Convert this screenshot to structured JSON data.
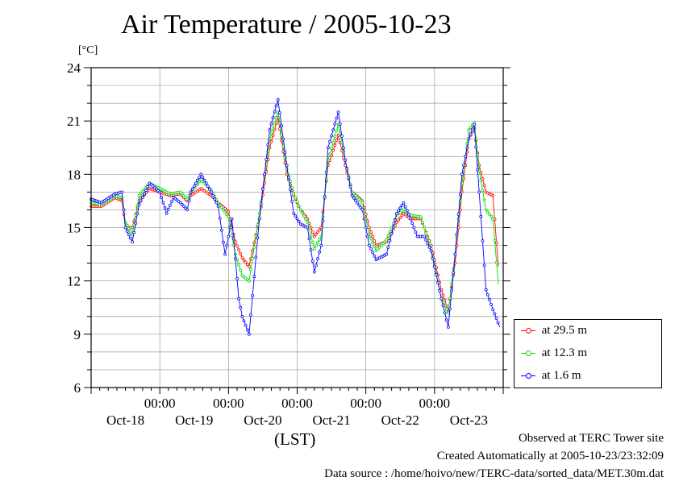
{
  "page": {
    "title": "Air Temperature / 2005-10-23",
    "unit_label": "[°C]",
    "time_zone_label": "(LST)",
    "footer": {
      "site": "Observed at TERC Tower site",
      "created": "Created Automatically at 2005-10-23/23:32:09",
      "source": "Data source : /home/hoivo/new/TERC-data/sorted_data/MET.30m.dat"
    }
  },
  "chart_data": {
    "type": "line",
    "title": "Air Temperature / 2005-10-23",
    "ylabel": "[°C]",
    "xlabel": "(LST)",
    "ylim": [
      6,
      24
    ],
    "y_ticks": [
      6,
      9,
      12,
      15,
      18,
      21,
      24
    ],
    "xlim_days": [
      0,
      6
    ],
    "x_time_ticks": [
      {
        "day": 1,
        "label": "00:00"
      },
      {
        "day": 2,
        "label": "00:00"
      },
      {
        "day": 3,
        "label": "00:00"
      },
      {
        "day": 4,
        "label": "00:00"
      },
      {
        "day": 5,
        "label": "00:00"
      }
    ],
    "x_date_labels": [
      {
        "day": 0.5,
        "label": "Oct-18"
      },
      {
        "day": 1.5,
        "label": "Oct-19"
      },
      {
        "day": 2.5,
        "label": "Oct-20"
      },
      {
        "day": 3.5,
        "label": "Oct-21"
      },
      {
        "day": 4.5,
        "label": "Oct-22"
      },
      {
        "day": 5.5,
        "label": "Oct-23"
      }
    ],
    "grid": true,
    "legend_position": "right-bottom",
    "series": [
      {
        "name": "at 29.5 m",
        "color": "#ff0000",
        "points": [
          [
            0.0,
            16.2
          ],
          [
            0.15,
            16.2
          ],
          [
            0.35,
            16.7
          ],
          [
            0.45,
            16.5
          ],
          [
            0.5,
            15.0
          ],
          [
            0.6,
            15.0
          ],
          [
            0.7,
            16.5
          ],
          [
            0.85,
            17.2
          ],
          [
            1.0,
            17.0
          ],
          [
            1.15,
            16.8
          ],
          [
            1.3,
            16.9
          ],
          [
            1.4,
            16.5
          ],
          [
            1.45,
            16.8
          ],
          [
            1.6,
            17.2
          ],
          [
            1.75,
            16.8
          ],
          [
            1.85,
            16.4
          ],
          [
            2.0,
            15.9
          ],
          [
            2.1,
            14.2
          ],
          [
            2.2,
            13.3
          ],
          [
            2.3,
            12.8
          ],
          [
            2.45,
            15.5
          ],
          [
            2.6,
            19.5
          ],
          [
            2.72,
            21.2
          ],
          [
            2.85,
            18.0
          ],
          [
            2.95,
            16.8
          ],
          [
            3.05,
            16.0
          ],
          [
            3.15,
            15.5
          ],
          [
            3.25,
            14.5
          ],
          [
            3.35,
            15.0
          ],
          [
            3.45,
            18.5
          ],
          [
            3.6,
            20.2
          ],
          [
            3.7,
            18.5
          ],
          [
            3.8,
            17.0
          ],
          [
            3.95,
            16.5
          ],
          [
            4.05,
            15.0
          ],
          [
            4.15,
            14.0
          ],
          [
            4.3,
            14.2
          ],
          [
            4.45,
            15.3
          ],
          [
            4.55,
            15.8
          ],
          [
            4.65,
            15.5
          ],
          [
            4.8,
            15.5
          ],
          [
            4.95,
            14.0
          ],
          [
            5.1,
            11.5
          ],
          [
            5.2,
            10.3
          ],
          [
            5.3,
            13.0
          ],
          [
            5.4,
            17.0
          ],
          [
            5.5,
            20.0
          ],
          [
            5.58,
            20.6
          ],
          [
            5.65,
            18.5
          ],
          [
            5.75,
            17.0
          ],
          [
            5.85,
            16.8
          ],
          [
            5.93,
            12.8
          ]
        ]
      },
      {
        "name": "at 12.3 m",
        "color": "#00dd00",
        "points": [
          [
            0.0,
            16.4
          ],
          [
            0.15,
            16.3
          ],
          [
            0.35,
            16.8
          ],
          [
            0.45,
            16.7
          ],
          [
            0.5,
            15.3
          ],
          [
            0.6,
            14.6
          ],
          [
            0.7,
            16.8
          ],
          [
            0.85,
            17.5
          ],
          [
            1.0,
            17.2
          ],
          [
            1.15,
            16.9
          ],
          [
            1.3,
            17.0
          ],
          [
            1.4,
            16.6
          ],
          [
            1.45,
            17.0
          ],
          [
            1.6,
            17.7
          ],
          [
            1.75,
            17.1
          ],
          [
            1.85,
            16.4
          ],
          [
            2.0,
            15.6
          ],
          [
            2.1,
            13.5
          ],
          [
            2.2,
            12.3
          ],
          [
            2.3,
            12.0
          ],
          [
            2.45,
            15.8
          ],
          [
            2.6,
            20.0
          ],
          [
            2.72,
            21.5
          ],
          [
            2.85,
            18.3
          ],
          [
            2.95,
            16.9
          ],
          [
            3.05,
            16.0
          ],
          [
            3.15,
            15.3
          ],
          [
            3.25,
            13.8
          ],
          [
            3.35,
            14.5
          ],
          [
            3.45,
            18.8
          ],
          [
            3.6,
            20.8
          ],
          [
            3.7,
            18.8
          ],
          [
            3.8,
            17.0
          ],
          [
            3.95,
            16.4
          ],
          [
            4.05,
            14.6
          ],
          [
            4.15,
            13.7
          ],
          [
            4.3,
            14.3
          ],
          [
            4.45,
            15.7
          ],
          [
            4.55,
            16.0
          ],
          [
            4.65,
            15.7
          ],
          [
            4.8,
            15.6
          ],
          [
            4.95,
            13.8
          ],
          [
            5.1,
            11.0
          ],
          [
            5.2,
            10.2
          ],
          [
            5.3,
            13.5
          ],
          [
            5.4,
            17.5
          ],
          [
            5.5,
            20.5
          ],
          [
            5.58,
            20.9
          ],
          [
            5.65,
            18.2
          ],
          [
            5.75,
            16.0
          ],
          [
            5.85,
            15.5
          ],
          [
            5.93,
            11.8
          ]
        ]
      },
      {
        "name": "at 1.6 m",
        "color": "#0000ff",
        "points": [
          [
            0.0,
            16.6
          ],
          [
            0.15,
            16.4
          ],
          [
            0.35,
            16.9
          ],
          [
            0.45,
            17.0
          ],
          [
            0.5,
            15.0
          ],
          [
            0.6,
            14.2
          ],
          [
            0.7,
            16.3
          ],
          [
            0.85,
            17.5
          ],
          [
            1.0,
            17.0
          ],
          [
            1.1,
            15.8
          ],
          [
            1.2,
            16.7
          ],
          [
            1.3,
            16.4
          ],
          [
            1.4,
            16.0
          ],
          [
            1.45,
            17.0
          ],
          [
            1.6,
            18.0
          ],
          [
            1.75,
            17.0
          ],
          [
            1.85,
            16.2
          ],
          [
            1.95,
            13.5
          ],
          [
            2.05,
            15.5
          ],
          [
            2.15,
            11.0
          ],
          [
            2.2,
            10.0
          ],
          [
            2.3,
            9.0
          ],
          [
            2.45,
            15.5
          ],
          [
            2.6,
            20.5
          ],
          [
            2.72,
            22.2
          ],
          [
            2.85,
            18.5
          ],
          [
            2.95,
            15.8
          ],
          [
            3.05,
            15.2
          ],
          [
            3.15,
            15.0
          ],
          [
            3.25,
            12.5
          ],
          [
            3.35,
            14.0
          ],
          [
            3.45,
            19.5
          ],
          [
            3.6,
            21.5
          ],
          [
            3.7,
            18.8
          ],
          [
            3.8,
            16.8
          ],
          [
            3.95,
            16.0
          ],
          [
            4.05,
            14.0
          ],
          [
            4.15,
            13.2
          ],
          [
            4.3,
            13.5
          ],
          [
            4.45,
            15.8
          ],
          [
            4.55,
            16.4
          ],
          [
            4.65,
            15.5
          ],
          [
            4.75,
            14.5
          ],
          [
            4.85,
            14.5
          ],
          [
            4.95,
            13.7
          ],
          [
            5.1,
            11.0
          ],
          [
            5.2,
            9.4
          ],
          [
            5.3,
            13.5
          ],
          [
            5.4,
            18.0
          ],
          [
            5.5,
            20.0
          ],
          [
            5.58,
            20.8
          ],
          [
            5.65,
            17.0
          ],
          [
            5.75,
            11.5
          ],
          [
            5.85,
            10.4
          ],
          [
            5.95,
            9.4
          ]
        ]
      }
    ]
  }
}
